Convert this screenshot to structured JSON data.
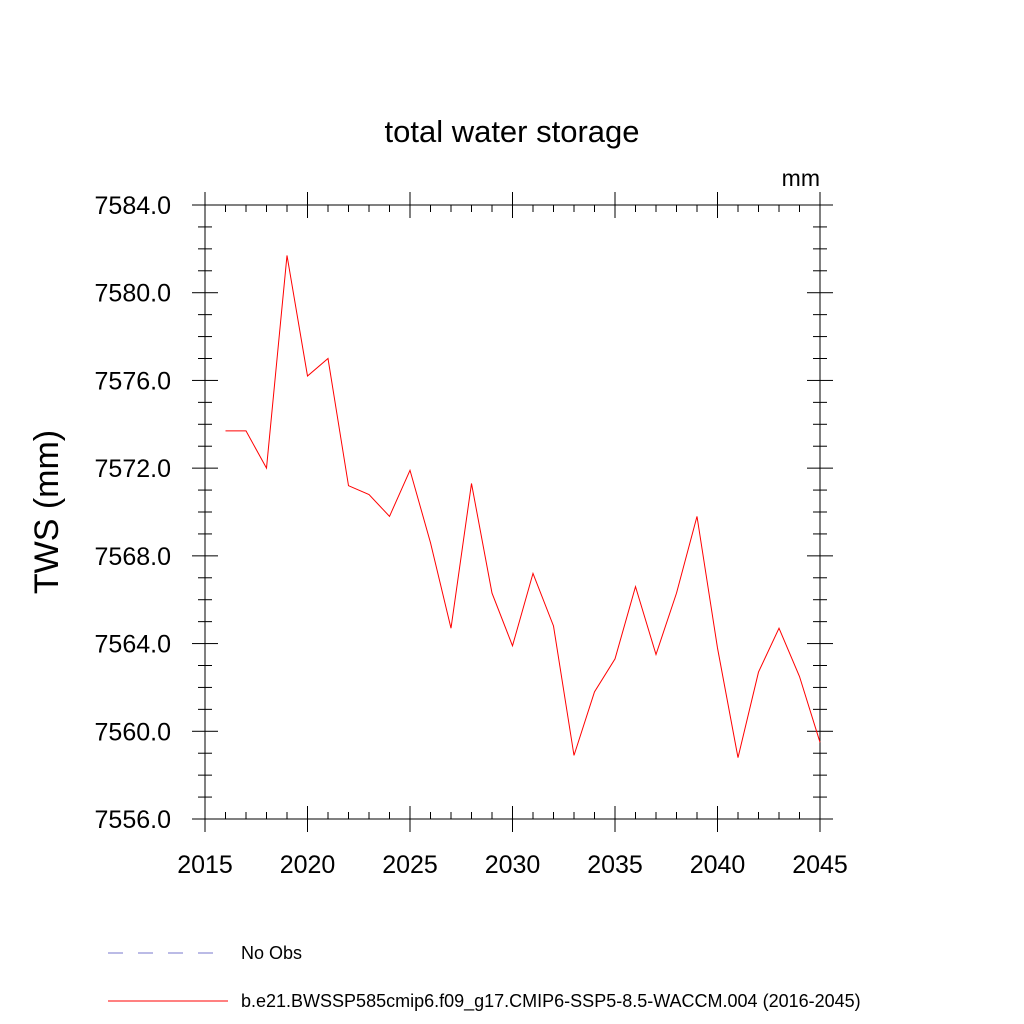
{
  "chart_data": {
    "type": "line",
    "title": "total water storage",
    "units": "mm",
    "xlabel": "",
    "ylabel": "TWS  (mm)",
    "xlim": [
      2015,
      2045
    ],
    "ylim": [
      7556.0,
      7584.0
    ],
    "x_ticks": [
      "2015",
      "2020",
      "2025",
      "2030",
      "2035",
      "2040",
      "2045"
    ],
    "y_ticks": [
      "7556.0",
      "7560.0",
      "7564.0",
      "7568.0",
      "7572.0",
      "7576.0",
      "7580.0",
      "7584.0"
    ],
    "grid": false,
    "legend_position": "bottom",
    "legend": [
      {
        "label": "No Obs",
        "color": "#7777cc",
        "style": "dashed"
      },
      {
        "label": "b.e21.BWSSP585cmip6.f09_g17.CMIP6-SSP5-8.5-WACCM.004 (2016-2045)",
        "color": "#ff0000",
        "style": "solid"
      }
    ],
    "series": [
      {
        "name": "b.e21.BWSSP585cmip6.f09_g17.CMIP6-SSP5-8.5-WACCM.004 (2016-2045)",
        "color": "#ff0000",
        "x": [
          2016,
          2017,
          2018,
          2019,
          2020,
          2021,
          2022,
          2023,
          2024,
          2025,
          2026,
          2027,
          2028,
          2029,
          2030,
          2031,
          2032,
          2033,
          2034,
          2035,
          2036,
          2037,
          2038,
          2039,
          2040,
          2041,
          2042,
          2043,
          2044,
          2045
        ],
        "y": [
          7573.7,
          7573.7,
          7572.0,
          7581.7,
          7576.2,
          7577.0,
          7571.2,
          7570.8,
          7569.8,
          7571.9,
          7568.6,
          7564.7,
          7571.3,
          7566.3,
          7563.9,
          7567.2,
          7564.8,
          7558.9,
          7561.8,
          7563.3,
          7566.6,
          7563.5,
          7566.3,
          7569.8,
          7563.8,
          7558.8,
          7562.7,
          7564.7,
          7562.5,
          7559.5
        ]
      }
    ]
  }
}
